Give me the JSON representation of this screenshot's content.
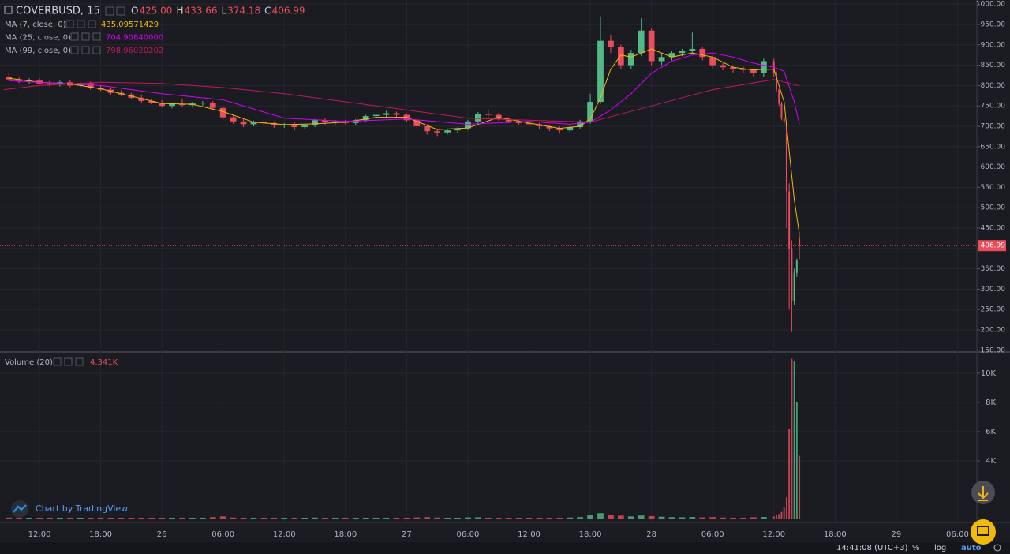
{
  "header": {
    "symbol": "COVERBUSD, 15",
    "ohlc": [
      {
        "key": "O",
        "value": "425.00"
      },
      {
        "key": "H",
        "value": "433.66"
      },
      {
        "key": "L",
        "value": "374.18"
      },
      {
        "key": "C",
        "value": "406.99"
      }
    ],
    "last_price_label": "406.99",
    "volume_title": "Volume (20)",
    "volume_last": "4.341K",
    "watermark": "Chart by TradingView",
    "clock": "14:41:08 (UTC+3)",
    "buttons": [
      "%",
      "log",
      "auto"
    ]
  },
  "chart_data": [
    {
      "type": "candlestick",
      "up_color": "#53b987",
      "down_color": "#eb4d5c",
      "grid": true,
      "xlim": [
        8.13,
        103.9
      ],
      "xticks": [
        {
          "value": 12,
          "label": "12:00"
        },
        {
          "value": 18,
          "label": "18:00"
        },
        {
          "value": 24,
          "label": "26"
        },
        {
          "value": 30,
          "label": "06:00"
        },
        {
          "value": 36,
          "label": "12:00"
        },
        {
          "value": 42,
          "label": "18:00"
        },
        {
          "value": 48,
          "label": "27"
        },
        {
          "value": 54,
          "label": "06:00"
        },
        {
          "value": 60,
          "label": "12:00"
        },
        {
          "value": 66,
          "label": "18:00"
        },
        {
          "value": 72,
          "label": "28"
        },
        {
          "value": 78,
          "label": "06:00"
        },
        {
          "value": 84,
          "label": "12:00"
        },
        {
          "value": 90,
          "label": "18:00"
        },
        {
          "value": 96,
          "label": "29"
        },
        {
          "value": 102,
          "label": "06:00"
        }
      ],
      "ylim": [
        150,
        1000
      ],
      "yticks": [
        {
          "value": 150,
          "label": "150.00"
        },
        {
          "value": 200,
          "label": "200.00"
        },
        {
          "value": 250,
          "label": "250.00"
        },
        {
          "value": 300,
          "label": "300.00"
        },
        {
          "value": 350,
          "label": "350.00"
        },
        {
          "value": 400,
          "label": "400.00"
        },
        {
          "value": 450,
          "label": "450.00"
        },
        {
          "value": 500,
          "label": "500.00"
        },
        {
          "value": 550,
          "label": "550.00"
        },
        {
          "value": 600,
          "label": "600.00"
        },
        {
          "value": 650,
          "label": "650.00"
        },
        {
          "value": 700,
          "label": "700.00"
        },
        {
          "value": 750,
          "label": "750.00"
        },
        {
          "value": 800,
          "label": "800.00"
        },
        {
          "value": 850,
          "label": "850.00"
        },
        {
          "value": 900,
          "label": "900.00"
        },
        {
          "value": 950,
          "label": "950.00"
        },
        {
          "value": 1000,
          "label": "1000.00"
        }
      ],
      "x": [
        9,
        10,
        11,
        12,
        13,
        14,
        15,
        16,
        17,
        18,
        19,
        20,
        21,
        22,
        23,
        24,
        25,
        26,
        27,
        28,
        29,
        30,
        31,
        32,
        33,
        34,
        35,
        36,
        37,
        38,
        39,
        40,
        41,
        42,
        43,
        44,
        45,
        46,
        47,
        48,
        49,
        50,
        51,
        52,
        53,
        54,
        55,
        56,
        57,
        58,
        59,
        60,
        61,
        62,
        63,
        64,
        65,
        66,
        67,
        68,
        69,
        70,
        71,
        72,
        73,
        74,
        75,
        76,
        77,
        78,
        79,
        80,
        81,
        82,
        83,
        84,
        84.25,
        84.5,
        84.75,
        85,
        85.25,
        85.5,
        85.75,
        86,
        86.25,
        86.5
      ],
      "open": [
        822,
        815,
        810,
        812,
        805,
        802,
        808,
        800,
        806,
        795,
        790,
        782,
        778,
        770,
        762,
        758,
        750,
        755,
        752,
        756,
        758,
        745,
        722,
        712,
        705,
        710,
        708,
        702,
        705,
        698,
        703,
        715,
        710,
        712,
        708,
        715,
        725,
        728,
        732,
        728,
        715,
        700,
        688,
        685,
        690,
        695,
        712,
        730,
        728,
        718,
        712,
        708,
        705,
        700,
        695,
        690,
        698,
        712,
        760,
        910,
        895,
        850,
        880,
        935,
        860,
        870,
        880,
        885,
        890,
        870,
        850,
        845,
        840,
        838,
        830,
        860,
        830,
        790,
        755,
        720,
        710,
        540,
        400,
        270,
        340,
        425
      ],
      "high": [
        830,
        822,
        818,
        818,
        812,
        812,
        814,
        808,
        810,
        800,
        795,
        788,
        782,
        776,
        768,
        764,
        758,
        768,
        760,
        762,
        762,
        750,
        728,
        718,
        714,
        716,
        712,
        708,
        710,
        705,
        718,
        720,
        716,
        716,
        718,
        728,
        732,
        738,
        736,
        732,
        718,
        705,
        694,
        694,
        698,
        716,
        735,
        740,
        732,
        722,
        716,
        712,
        708,
        702,
        700,
        702,
        716,
        780,
        970,
        925,
        900,
        888,
        965,
        940,
        880,
        886,
        890,
        930,
        895,
        875,
        856,
        850,
        846,
        842,
        866,
        866,
        835,
        795,
        760,
        724,
        712,
        560,
        420,
        350,
        375,
        433.66
      ],
      "low": [
        812,
        806,
        804,
        802,
        798,
        798,
        796,
        796,
        790,
        786,
        778,
        774,
        766,
        758,
        754,
        746,
        744,
        748,
        746,
        750,
        740,
        716,
        706,
        698,
        700,
        702,
        696,
        696,
        690,
        694,
        698,
        704,
        704,
        702,
        702,
        710,
        718,
        722,
        722,
        710,
        694,
        680,
        676,
        680,
        684,
        690,
        706,
        722,
        714,
        708,
        704,
        700,
        694,
        688,
        682,
        686,
        694,
        706,
        755,
        880,
        840,
        840,
        872,
        850,
        850,
        862,
        872,
        878,
        862,
        842,
        838,
        832,
        830,
        822,
        822,
        822,
        785,
        750,
        715,
        700,
        450,
        250,
        195,
        262,
        330,
        374.18
      ],
      "close": [
        815,
        810,
        812,
        805,
        802,
        808,
        800,
        806,
        795,
        790,
        782,
        778,
        770,
        762,
        758,
        750,
        755,
        752,
        756,
        758,
        745,
        722,
        712,
        705,
        710,
        708,
        702,
        705,
        698,
        703,
        715,
        710,
        712,
        708,
        715,
        725,
        728,
        732,
        728,
        715,
        700,
        688,
        685,
        690,
        695,
        712,
        730,
        728,
        718,
        712,
        708,
        705,
        700,
        695,
        690,
        698,
        712,
        760,
        910,
        895,
        850,
        880,
        935,
        860,
        870,
        880,
        885,
        890,
        870,
        850,
        845,
        840,
        838,
        830,
        860,
        830,
        790,
        755,
        720,
        710,
        540,
        400,
        270,
        340,
        370,
        406.99
      ],
      "last_close_line": "#eb4d5c",
      "series": [
        {
          "name": "MA (7, close, 0)",
          "last_label": "435.09571429",
          "color": "#f0b90b",
          "x": [
            9,
            12,
            15,
            18,
            21,
            24,
            27,
            30,
            33,
            36,
            39,
            42,
            45,
            48,
            51,
            54,
            57,
            60,
            63,
            65,
            66,
            67,
            68,
            69,
            70,
            71,
            72,
            74,
            76,
            78,
            80,
            82,
            83,
            84,
            84.5,
            85,
            85.5,
            86,
            86.5
          ],
          "values": [
            818,
            808,
            804,
            792,
            774,
            756,
            754,
            736,
            710,
            704,
            706,
            710,
            722,
            722,
            692,
            696,
            722,
            708,
            695,
            700,
            718,
            770,
            840,
            875,
            870,
            880,
            890,
            870,
            880,
            870,
            845,
            838,
            840,
            840,
            800,
            760,
            640,
            520,
            435.09571429
          ]
        },
        {
          "name": "MA (25, close, 0)",
          "last_label": "704.90840000",
          "color": "#d500f9",
          "x": [
            9,
            12,
            18,
            24,
            30,
            36,
            42,
            48,
            54,
            60,
            64,
            66,
            68,
            70,
            72,
            74,
            76,
            78,
            80,
            82,
            84,
            85,
            86,
            86.5
          ],
          "values": [
            812,
            808,
            800,
            780,
            765,
            720,
            712,
            718,
            705,
            712,
            705,
            710,
            740,
            780,
            830,
            860,
            875,
            880,
            870,
            855,
            845,
            835,
            760,
            704.9084
          ]
        },
        {
          "name": "MA (99, close, 0)",
          "last_label": "798.96020202",
          "color": "#c2185b",
          "x": [
            8.5,
            12,
            18,
            24,
            30,
            36,
            42,
            48,
            54,
            60,
            66,
            72,
            78,
            84,
            86.5
          ],
          "values": [
            790,
            800,
            808,
            805,
            795,
            780,
            760,
            740,
            720,
            715,
            710,
            750,
            790,
            815,
            798.96020202
          ]
        }
      ]
    },
    {
      "type": "bar",
      "ylim": [
        0,
        11400
      ],
      "yticks": [
        {
          "value": 4000,
          "label": "4K"
        },
        {
          "value": 6000,
          "label": "6K"
        },
        {
          "value": 8000,
          "label": "8K"
        },
        {
          "value": 10000,
          "label": "10K"
        }
      ],
      "values": [
        120,
        90,
        80,
        100,
        70,
        90,
        80,
        75,
        90,
        110,
        80,
        70,
        90,
        85,
        70,
        95,
        80,
        75,
        90,
        110,
        150,
        200,
        120,
        100,
        90,
        80,
        85,
        95,
        100,
        90,
        120,
        85,
        80,
        90,
        85,
        110,
        95,
        90,
        80,
        100,
        130,
        150,
        120,
        90,
        95,
        130,
        140,
        110,
        90,
        80,
        85,
        90,
        100,
        95,
        110,
        120,
        150,
        280,
        420,
        300,
        250,
        200,
        260,
        220,
        180,
        150,
        140,
        160,
        130,
        150,
        120,
        110,
        100,
        140,
        160,
        200,
        300,
        350,
        500,
        800,
        1500,
        6200,
        11000,
        10800,
        8000,
        4341
      ]
    }
  ]
}
